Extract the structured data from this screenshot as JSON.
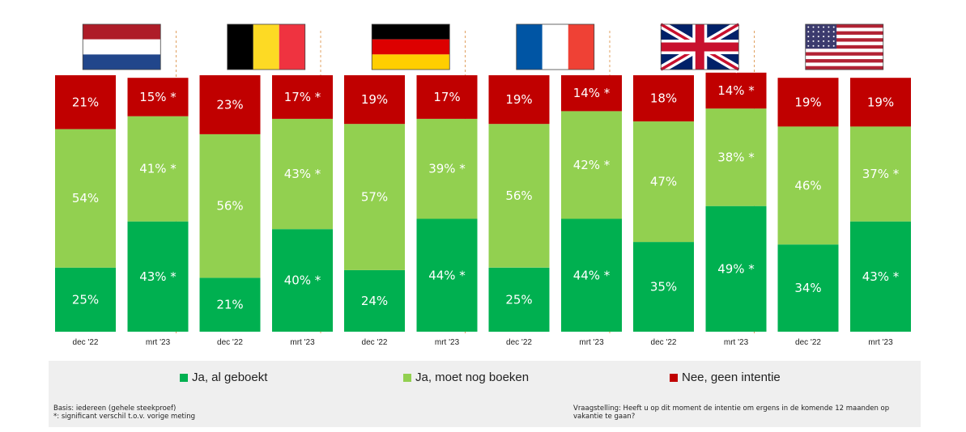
{
  "chart_data": {
    "type": "bar",
    "stacked": true,
    "unit": "%",
    "countries": [
      {
        "name": "Nederland",
        "flag": "nl"
      },
      {
        "name": "België",
        "flag": "be"
      },
      {
        "name": "Duitsland",
        "flag": "de"
      },
      {
        "name": "Frankrijk",
        "flag": "fr"
      },
      {
        "name": "Verenigd Koninkrijk",
        "flag": "uk"
      },
      {
        "name": "Verenigde Staten",
        "flag": "us"
      }
    ],
    "periods": [
      "dec '22",
      "mrt '23"
    ],
    "categories": [
      "dec '22",
      "mrt '23",
      "dec '22",
      "mrt '23",
      "dec '22",
      "mrt '23",
      "dec '22",
      "mrt '23",
      "dec '22",
      "mrt '23",
      "dec '22",
      "mrt '23"
    ],
    "series": [
      {
        "name": "Ja, al geboekt",
        "color": "#00b050",
        "values": [
          25,
          43,
          21,
          40,
          24,
          44,
          25,
          44,
          35,
          49,
          34,
          43
        ],
        "labels": [
          "25%",
          "43%",
          "21%",
          "40%",
          "24%",
          "44%",
          "25%",
          "44%",
          "35%",
          "49%",
          "34%",
          "43%"
        ],
        "significant": [
          false,
          true,
          false,
          true,
          false,
          true,
          false,
          true,
          false,
          true,
          false,
          true
        ]
      },
      {
        "name": "Ja, moet nog boeken",
        "color": "#92d050",
        "values": [
          54,
          41,
          56,
          43,
          57,
          39,
          56,
          42,
          47,
          38,
          46,
          37
        ],
        "labels": [
          "54%",
          "41%",
          "56%",
          "43%",
          "57%",
          "39%",
          "56%",
          "42%",
          "47%",
          "38%",
          "46%",
          "37%"
        ],
        "significant": [
          false,
          true,
          false,
          true,
          false,
          true,
          false,
          true,
          false,
          true,
          false,
          true
        ]
      },
      {
        "name": "Nee, geen intentie",
        "color": "#c00000",
        "values": [
          21,
          15,
          23,
          17,
          19,
          17,
          19,
          14,
          18,
          14,
          19,
          19
        ],
        "labels": [
          "21%",
          "15%",
          "23%",
          "17%",
          "19%",
          "17%",
          "19%",
          "14%",
          "18%",
          "14%",
          "19%",
          "19%"
        ],
        "significant": [
          false,
          true,
          false,
          true,
          false,
          false,
          false,
          true,
          false,
          true,
          false,
          false
        ]
      }
    ],
    "significance_marker": "*",
    "ylim": [
      0,
      100
    ],
    "legend_position": "bottom",
    "grid": false
  },
  "legend": {
    "items": [
      {
        "label": "Ja, al geboekt",
        "color": "#00b050"
      },
      {
        "label": "Ja, moet nog boeken",
        "color": "#92d050"
      },
      {
        "label": "Nee, geen intentie",
        "color": "#c00000"
      }
    ]
  },
  "notes": {
    "basis_line1": "Basis: iedereen (gehele steekproef)",
    "basis_line2": "*: significant verschil t.o.v. vorige meting",
    "question_line1": "Vraagstelling: Heeft u op dit moment de intentie om ergens in de komende 12 maanden op",
    "question_line2": "vakantie te gaan?"
  }
}
